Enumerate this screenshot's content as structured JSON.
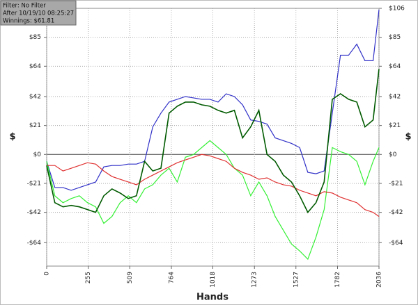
{
  "chart_data": {
    "type": "line",
    "annotations": [
      "Filter: No Filter",
      "After 10/19/10 08:25:27",
      "Winnings: $61.81"
    ],
    "xlabel": "Hands",
    "ylabel": "$",
    "y2label": "$",
    "x": [
      0,
      50,
      100,
      150,
      200,
      250,
      300,
      350,
      400,
      450,
      500,
      550,
      600,
      650,
      700,
      750,
      800,
      850,
      900,
      950,
      1000,
      1050,
      1100,
      1150,
      1200,
      1250,
      1300,
      1350,
      1400,
      1450,
      1500,
      1550,
      1600,
      1650,
      1700,
      1750,
      1800,
      1850,
      1900,
      1950,
      2000,
      2036
    ],
    "series": [
      {
        "color": "#3030c8",
        "values": [
          -5,
          -24,
          -24,
          -26,
          -24,
          -22,
          -20,
          -9,
          -8,
          -8,
          -7,
          -7,
          -5,
          20,
          30,
          38,
          40,
          42,
          41,
          40,
          40,
          38,
          44,
          42,
          36,
          25,
          24,
          22,
          12,
          10,
          8,
          5,
          -13,
          -14,
          -12,
          30,
          72,
          72,
          80,
          68,
          68,
          105
        ]
      },
      {
        "color": "#33f033",
        "values": [
          -5,
          -30,
          -35,
          -32,
          -30,
          -35,
          -38,
          -50,
          -45,
          -35,
          -30,
          -35,
          -25,
          -22,
          -15,
          -10,
          -20,
          -2,
          0,
          5,
          10,
          5,
          0,
          -10,
          -15,
          -30,
          -20,
          -30,
          -45,
          -55,
          -65,
          -70,
          -76,
          -60,
          -40,
          5,
          2,
          0,
          -5,
          -22,
          -5,
          5
        ]
      },
      {
        "color": "#e03030",
        "values": [
          -8,
          -8,
          -12,
          -10,
          -8,
          -6,
          -7,
          -12,
          -16,
          -18,
          -20,
          -22,
          -18,
          -15,
          -12,
          -9,
          -6,
          -4,
          -2,
          0,
          -1,
          -3,
          -5,
          -10,
          -13,
          -15,
          -18,
          -17,
          -20,
          -22,
          -23,
          -26,
          -28,
          -30,
          -27,
          -28,
          -31,
          -33,
          -35,
          -40,
          -42,
          -45
        ]
      },
      {
        "color": "#005a00",
        "values": [
          -8,
          -35,
          -38,
          -37,
          -38,
          -40,
          -42,
          -30,
          -25,
          -28,
          -32,
          -30,
          -5,
          -12,
          -10,
          30,
          35,
          38,
          38,
          36,
          35,
          32,
          30,
          32,
          12,
          20,
          32,
          0,
          -5,
          -15,
          -20,
          -30,
          -42,
          -35,
          -20,
          40,
          44,
          40,
          38,
          20,
          25,
          62
        ]
      }
    ],
    "xlim": [
      0,
      2036
    ],
    "xticks": [
      0,
      255,
      509,
      764,
      1018,
      1273,
      1527,
      1782,
      2036
    ],
    "ylim": [
      -81,
      106
    ],
    "yticks": [
      {
        "value": 85,
        "label": "$85"
      },
      {
        "value": 64,
        "label": "$64"
      },
      {
        "value": 42,
        "label": "$42"
      },
      {
        "value": 21,
        "label": "$21"
      },
      {
        "value": 0,
        "label": "$0"
      },
      {
        "value": -21,
        "label": "-$21"
      },
      {
        "value": -42,
        "label": "-$42"
      },
      {
        "value": -64,
        "label": "-$64"
      }
    ],
    "y2lim": [
      -81,
      106
    ],
    "y2ticks": [
      {
        "value": 106,
        "label": "$106"
      },
      {
        "value": 85,
        "label": "$85"
      },
      {
        "value": 64,
        "label": "$64"
      },
      {
        "value": 42,
        "label": "$42"
      },
      {
        "value": 21,
        "label": "$21"
      },
      {
        "value": 0,
        "label": "$0"
      },
      {
        "value": -21,
        "label": "-$21"
      },
      {
        "value": -42,
        "label": "-$42"
      },
      {
        "value": -64,
        "label": "-$64"
      }
    ],
    "grid": true
  }
}
